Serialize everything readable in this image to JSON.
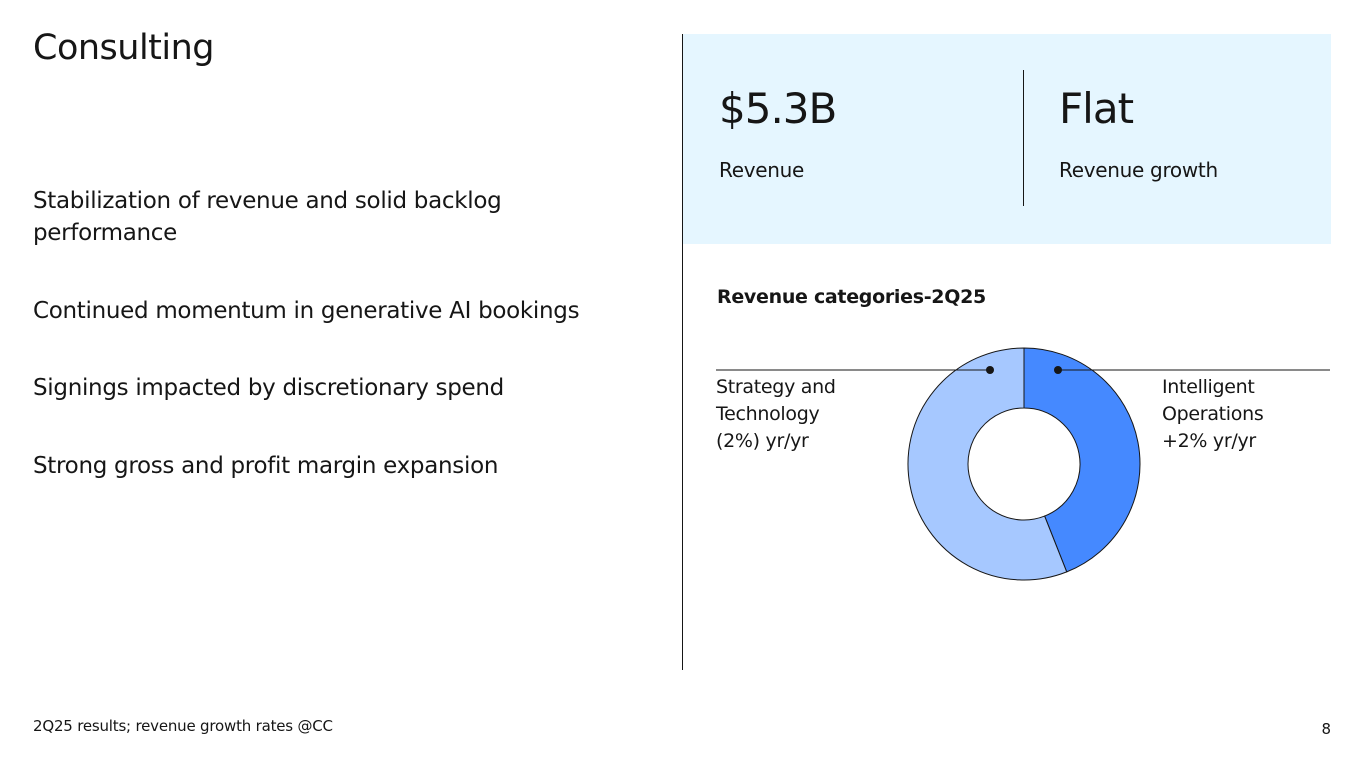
{
  "title": "Consulting",
  "bullets": [
    "Stabilization of revenue and solid backlog performance",
    "Continued momentum in generative AI bookings",
    "Signings impacted by discretionary spend",
    "Strong gross and profit margin expansion"
  ],
  "metrics": [
    {
      "value": "$5.3B",
      "label": "Revenue"
    },
    {
      "value": "Flat",
      "label": "Revenue growth"
    }
  ],
  "chart_data": {
    "type": "pie",
    "title": "Revenue categories-2Q25",
    "donut": true,
    "slices": [
      {
        "label_lines": [
          "Intelligent",
          "Operations",
          "+2% yr/yr"
        ],
        "value": 44,
        "color": "#4589ff"
      },
      {
        "label_lines": [
          "Strategy and",
          "Technology",
          "(2%) yr/yr"
        ],
        "value": 56,
        "color": "#a6c8ff"
      }
    ]
  },
  "colors": {
    "panel_background": "#e5f6ff",
    "text": "#161616"
  },
  "footer": {
    "note": "2Q25 results; revenue growth rates @CC",
    "page_number": "8"
  }
}
